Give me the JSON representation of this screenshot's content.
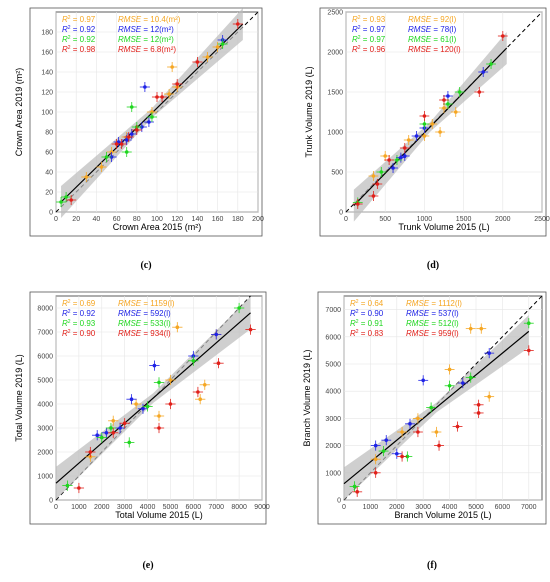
{
  "colors": {
    "orange": "#F5A623",
    "blue": "#1E22E6",
    "green": "#1FD61F",
    "red": "#E0201A",
    "fit": "#000000",
    "band": "#BBBBBB"
  },
  "chart_data": [
    {
      "panel": "(c)",
      "type": "scatter",
      "xlabel": "Crown Area 2015 (m²)",
      "ylabel": "Crown Area 2019 (m²)",
      "xlim": [
        0,
        200
      ],
      "ylim": [
        0,
        200
      ],
      "xticks": [
        0,
        20,
        40,
        60,
        80,
        100,
        120,
        140,
        160,
        180,
        200
      ],
      "yticks": [
        0,
        20,
        40,
        60,
        80,
        100,
        120,
        140,
        160,
        180
      ],
      "stats": [
        {
          "r2": "0.97",
          "rmse": "10.4(m²)",
          "color": "orange"
        },
        {
          "r2": "0.92",
          "rmse": "12(m²)",
          "color": "blue"
        },
        {
          "r2": "0.92",
          "rmse": "12(m²)",
          "color": "green"
        },
        {
          "r2": "0.98",
          "rmse": "6.8(m²)",
          "color": "red"
        }
      ],
      "fit": [
        [
          5,
          10
        ],
        [
          185,
          188
        ]
      ],
      "series": [
        {
          "color": "orange",
          "points": [
            [
              30,
              35
            ],
            [
              45,
              45
            ],
            [
              55,
              60
            ],
            [
              70,
              75
            ],
            [
              95,
              100
            ],
            [
              112,
              118
            ],
            [
              115,
              145
            ],
            [
              120,
              125
            ],
            [
              150,
              155
            ],
            [
              160,
              165
            ]
          ]
        },
        {
          "color": "blue",
          "points": [
            [
              55,
              55
            ],
            [
              62,
              70
            ],
            [
              70,
              72
            ],
            [
              75,
              78
            ],
            [
              85,
              85
            ],
            [
              88,
              125
            ],
            [
              92,
              90
            ],
            [
              165,
              172
            ]
          ]
        },
        {
          "color": "green",
          "points": [
            [
              5,
              10
            ],
            [
              10,
              15
            ],
            [
              50,
              55
            ],
            [
              70,
              60
            ],
            [
              75,
              105
            ],
            [
              80,
              85
            ],
            [
              95,
              95
            ],
            [
              165,
              168
            ]
          ]
        },
        {
          "color": "red",
          "points": [
            [
              15,
              12
            ],
            [
              60,
              68
            ],
            [
              65,
              68
            ],
            [
              72,
              75
            ],
            [
              80,
              82
            ],
            [
              100,
              115
            ],
            [
              105,
              115
            ],
            [
              120,
              128
            ],
            [
              140,
              150
            ],
            [
              180,
              188
            ]
          ]
        }
      ]
    },
    {
      "panel": "(d)",
      "type": "scatter",
      "xlabel": "Trunk Volume 2015 (L)",
      "ylabel": "Trunk Volume 2019 (L)",
      "xlim": [
        0,
        2500
      ],
      "ylim": [
        0,
        2500
      ],
      "xticks": [
        0,
        500,
        1000,
        1500,
        2000,
        2500
      ],
      "yticks": [
        0,
        500,
        1000,
        1500,
        2000,
        2500
      ],
      "stats": [
        {
          "r2": "0.93",
          "rmse": "92(l)",
          "color": "orange"
        },
        {
          "r2": "0.97",
          "rmse": "78(l)",
          "color": "blue"
        },
        {
          "r2": "0.97",
          "rmse": "61(l)",
          "color": "green"
        },
        {
          "r2": "0.96",
          "rmse": "120(l)",
          "color": "red"
        }
      ],
      "fit": [
        [
          100,
          80
        ],
        [
          2050,
          2050
        ]
      ],
      "series": [
        {
          "color": "orange",
          "points": [
            [
              350,
              450
            ],
            [
              500,
              700
            ],
            [
              800,
              900
            ],
            [
              1000,
              950
            ],
            [
              1100,
              1100
            ],
            [
              1200,
              1000
            ],
            [
              1250,
              1300
            ],
            [
              1400,
              1250
            ]
          ]
        },
        {
          "color": "blue",
          "points": [
            [
              600,
              550
            ],
            [
              700,
              680
            ],
            [
              750,
              700
            ],
            [
              900,
              950
            ],
            [
              1000,
              1050
            ],
            [
              1300,
              1450
            ],
            [
              1750,
              1750
            ]
          ]
        },
        {
          "color": "green",
          "points": [
            [
              150,
              120
            ],
            [
              450,
              500
            ],
            [
              650,
              650
            ],
            [
              1000,
              1100
            ],
            [
              1300,
              1350
            ],
            [
              1450,
              1500
            ],
            [
              1850,
              1850
            ]
          ]
        },
        {
          "color": "red",
          "points": [
            [
              150,
              100
            ],
            [
              350,
              200
            ],
            [
              400,
              350
            ],
            [
              550,
              650
            ],
            [
              750,
              800
            ],
            [
              1000,
              1200
            ],
            [
              1250,
              1400
            ],
            [
              1700,
              1500
            ],
            [
              2000,
              2200
            ]
          ]
        }
      ]
    },
    {
      "panel": "(e)",
      "type": "scatter",
      "xlabel": "Total Volume 2015 (L)",
      "ylabel": "Total Volume 2019 (L)",
      "xlim": [
        0,
        9000
      ],
      "ylim": [
        0,
        8500
      ],
      "xticks": [
        0,
        1000,
        2000,
        3000,
        4000,
        5000,
        6000,
        7000,
        8000,
        9000
      ],
      "yticks": [
        0,
        1000,
        2000,
        3000,
        4000,
        5000,
        6000,
        7000,
        8000
      ],
      "stats": [
        {
          "r2": "0.69",
          "rmse": "1159(l)",
          "color": "orange"
        },
        {
          "r2": "0.92",
          "rmse": "592(l)",
          "color": "blue"
        },
        {
          "r2": "0.93",
          "rmse": "533(l)",
          "color": "green"
        },
        {
          "r2": "0.90",
          "rmse": "934(l)",
          "color": "red"
        }
      ],
      "fit": [
        [
          0,
          700
        ],
        [
          8500,
          7800
        ]
      ],
      "series": [
        {
          "color": "orange",
          "points": [
            [
              1500,
              1800
            ],
            [
              2500,
              3300
            ],
            [
              3500,
              4000
            ],
            [
              4500,
              3500
            ],
            [
              5000,
              5000
            ],
            [
              5300,
              7200
            ],
            [
              6300,
              4200
            ],
            [
              6500,
              4800
            ],
            [
              7000,
              6900
            ]
          ]
        },
        {
          "color": "blue",
          "points": [
            [
              1800,
              2700
            ],
            [
              2200,
              2800
            ],
            [
              2800,
              3000
            ],
            [
              3300,
              4200
            ],
            [
              3800,
              3800
            ],
            [
              4300,
              5600
            ],
            [
              6000,
              6000
            ],
            [
              7000,
              6900
            ]
          ]
        },
        {
          "color": "green",
          "points": [
            [
              500,
              600
            ],
            [
              2000,
              2600
            ],
            [
              2400,
              3000
            ],
            [
              3200,
              2400
            ],
            [
              4000,
              3900
            ],
            [
              4500,
              4900
            ],
            [
              6000,
              5800
            ],
            [
              8000,
              8000
            ]
          ]
        },
        {
          "color": "red",
          "points": [
            [
              1000,
              500
            ],
            [
              1500,
              2000
            ],
            [
              2500,
              2800
            ],
            [
              3000,
              3200
            ],
            [
              4500,
              3000
            ],
            [
              5000,
              4000
            ],
            [
              6200,
              4500
            ],
            [
              7100,
              5700
            ],
            [
              8500,
              7100
            ]
          ]
        }
      ]
    },
    {
      "panel": "(f)",
      "type": "scatter",
      "xlabel": "Branch Volume 2015 (L)",
      "ylabel": "Branch Volume 2019 (L)",
      "xlim": [
        0,
        7500
      ],
      "ylim": [
        0,
        7500
      ],
      "xticks": [
        0,
        1000,
        2000,
        3000,
        4000,
        5000,
        6000,
        7000
      ],
      "yticks": [
        0,
        1000,
        2000,
        3000,
        4000,
        5000,
        6000,
        7000
      ],
      "stats": [
        {
          "r2": "0.64",
          "rmse": "1112(l)",
          "color": "orange"
        },
        {
          "r2": "0.90",
          "rmse": "537(l)",
          "color": "blue"
        },
        {
          "r2": "0.91",
          "rmse": "512(l)",
          "color": "green"
        },
        {
          "r2": "0.83",
          "rmse": "959(l)",
          "color": "red"
        }
      ],
      "fit": [
        [
          0,
          600
        ],
        [
          7000,
          6200
        ]
      ],
      "series": [
        {
          "color": "orange",
          "points": [
            [
              1200,
              1500
            ],
            [
              2200,
              2500
            ],
            [
              2800,
              3000
            ],
            [
              3500,
              2500
            ],
            [
              4000,
              4800
            ],
            [
              4500,
              4300
            ],
            [
              4800,
              6300
            ],
            [
              5500,
              3800
            ],
            [
              5200,
              6300
            ]
          ]
        },
        {
          "color": "blue",
          "points": [
            [
              1200,
              2000
            ],
            [
              1600,
              2200
            ],
            [
              2000,
              1700
            ],
            [
              2500,
              2800
            ],
            [
              3000,
              4400
            ],
            [
              4500,
              4300
            ],
            [
              5500,
              5400
            ]
          ]
        },
        {
          "color": "green",
          "points": [
            [
              400,
              500
            ],
            [
              1500,
              1800
            ],
            [
              2400,
              1600
            ],
            [
              3300,
              3400
            ],
            [
              4000,
              4200
            ],
            [
              4800,
              4500
            ],
            [
              7000,
              6500
            ]
          ]
        },
        {
          "color": "red",
          "points": [
            [
              500,
              300
            ],
            [
              1200,
              1000
            ],
            [
              2200,
              1600
            ],
            [
              2800,
              2500
            ],
            [
              3600,
              2000
            ],
            [
              4300,
              2700
            ],
            [
              5100,
              3200
            ],
            [
              5100,
              3500
            ],
            [
              7000,
              5500
            ]
          ]
        }
      ]
    }
  ]
}
